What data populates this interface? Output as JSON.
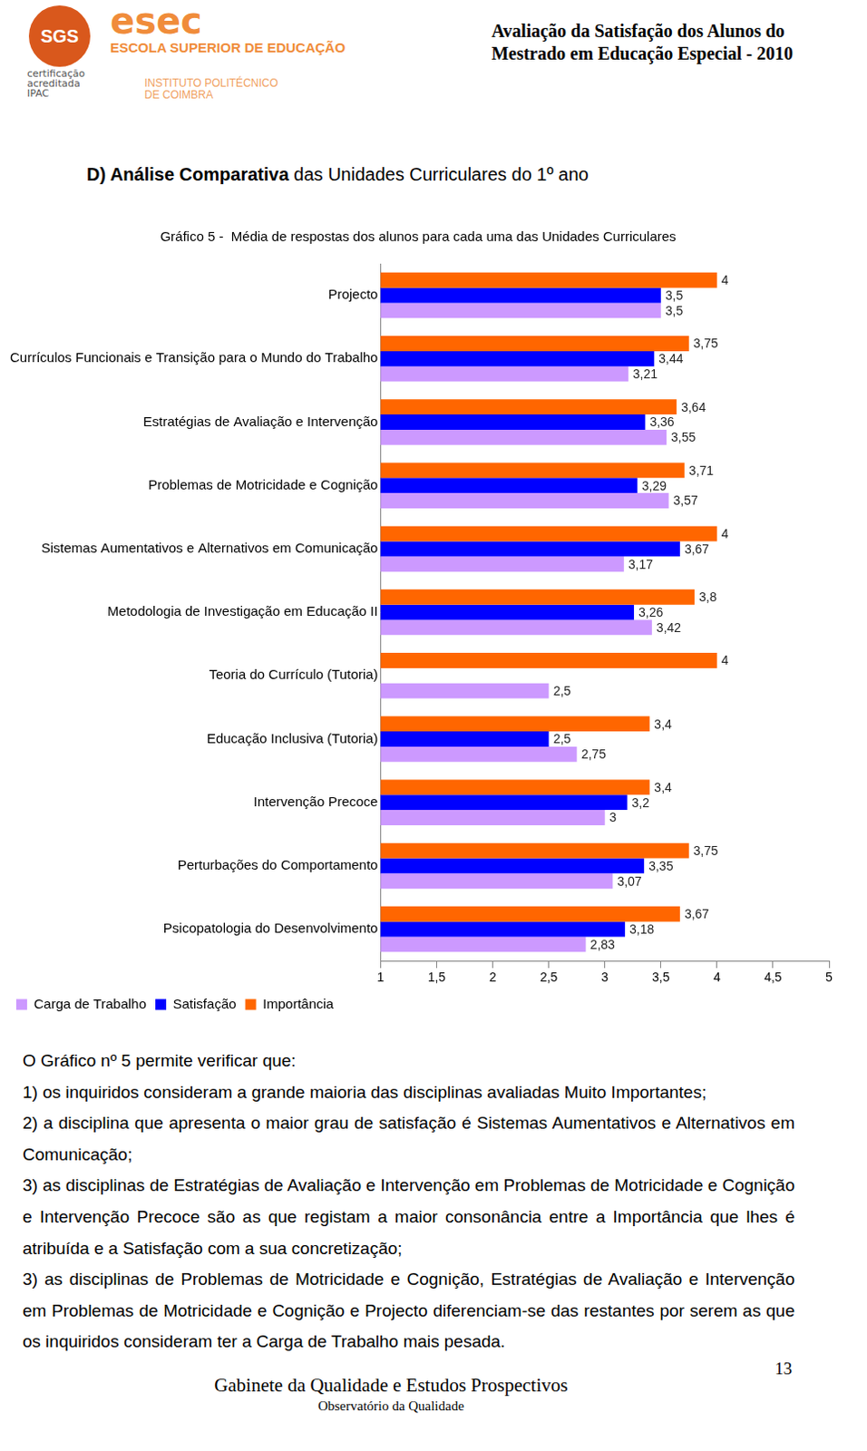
{
  "header": {
    "badge": "SGS",
    "certification": "certificação acreditada IPAC",
    "logo": "esec",
    "school": "ESCOLA SUPERIOR DE EDUCAÇÃO",
    "institute": "INSTITUTO POLITÉCNICO DE COIMBRA",
    "report_title": [
      "Avaliação da Satisfação dos Alunos do",
      "Mestrado em Educação Especial - 2010"
    ]
  },
  "section_title": {
    "bold": "D) Análise Comparativa",
    "rest": " das Unidades Curriculares do 1º ano"
  },
  "chart_data": {
    "type": "bar",
    "orientation": "horizontal",
    "title": "Gráfico 5 -  Média de respostas dos alunos para cada uma das Unidades Curriculares",
    "categories": [
      "Projecto",
      "Currículos Funcionais e Transição para o Mundo do Trabalho",
      "Estratégias de Avaliação e Intervenção",
      "Problemas de Motricidade e Cognição",
      "Sistemas Aumentativos e Alternativos em Comunicação",
      "Metodologia de Investigação em Educação II",
      "Teoria do Currículo (Tutoria)",
      "Educação Inclusiva (Tutoria)",
      "Intervenção Precoce",
      "Perturbações do Comportamento",
      "Psicopatologia do Desenvolvimento"
    ],
    "series": [
      {
        "name": "Carga de Trabalho",
        "color": "#cc99ff",
        "values": [
          3.5,
          3.21,
          3.55,
          3.57,
          3.17,
          3.42,
          2.5,
          2.75,
          3,
          3.07,
          2.83
        ],
        "value_labels": [
          "3,5",
          "3,21",
          "3,55",
          "3,57",
          "3,17",
          "3,42",
          "2,5",
          "2,75",
          "3",
          "3,07",
          "2,83"
        ]
      },
      {
        "name": "Satisfação",
        "color": "#0000ff",
        "values": [
          3.5,
          3.44,
          3.36,
          3.29,
          3.67,
          3.26,
          null,
          2.5,
          3.2,
          3.35,
          3.18
        ],
        "value_labels": [
          "3,5",
          "3,44",
          "3,36",
          "3,29",
          "3,67",
          "3,26",
          null,
          "2,5",
          "3,2",
          "3,35",
          "3,18"
        ]
      },
      {
        "name": "Importância",
        "color": "#ff6600",
        "values": [
          4,
          3.75,
          3.64,
          3.71,
          4,
          3.8,
          4,
          3.4,
          3.4,
          3.75,
          3.67
        ],
        "value_labels": [
          "4",
          "3,75",
          "3,64",
          "3,71",
          "4",
          "3,8",
          "4",
          "3,4",
          "3,4",
          "3,75",
          "3,67"
        ]
      }
    ],
    "xlim": [
      1,
      5
    ],
    "xticks": [
      1,
      {
        "value": 1.5,
        "label": "1,5"
      },
      2,
      {
        "value": 2.5,
        "label": "2,5"
      },
      3,
      {
        "value": 3.5,
        "label": "3,5"
      },
      4,
      {
        "value": 4.5,
        "label": "4,5"
      },
      5
    ],
    "grid": false,
    "legend": "bottom",
    "data_labels": true
  },
  "text": [
    "O Gráfico nº 5 permite verificar que:",
    "1) os inquiridos consideram a grande maioria das disciplinas avaliadas Muito Importantes;",
    "2) a disciplina que apresenta o maior grau de satisfação é Sistemas Aumentativos e Alternativos em Comunicação;",
    "3) as disciplinas de Estratégias de Avaliação e Intervenção em Problemas de Motricidade e Cognição e Intervenção Precoce são as que registam a maior consonância entre a  Importância que lhes é atribuída e a Satisfação com a sua concretização;",
    "3) as disciplinas de Problemas de Motricidade e Cognição, Estratégias de Avaliação e Intervenção em Problemas de Motricidade e Cognição e Projecto diferenciam-se das restantes por serem as que os inquiridos consideram ter a Carga de Trabalho mais pesada."
  ],
  "page_number": 13,
  "footer": [
    "Gabinete da Qualidade e Estudos Prospectivos",
    "Observatório da Qualidade"
  ]
}
